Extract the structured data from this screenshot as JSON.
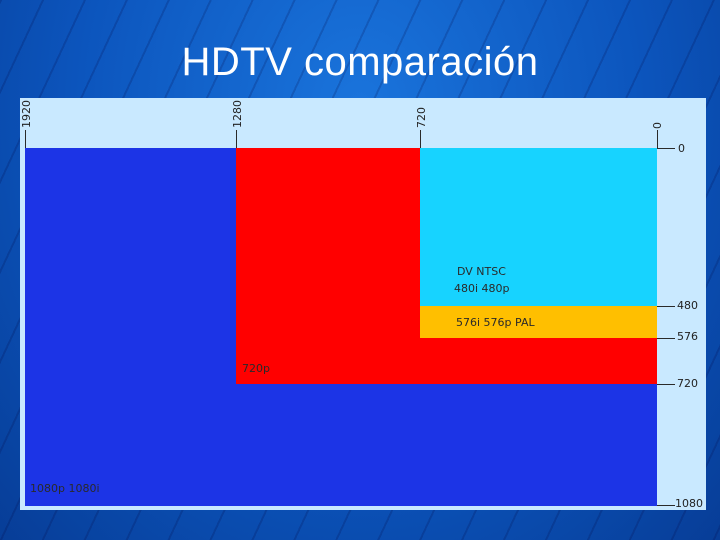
{
  "title": "HDTV comparación",
  "top_axis": {
    "ticks": [
      "1920",
      "1280",
      "720",
      "0"
    ]
  },
  "right_axis": {
    "ticks": [
      "0",
      "480",
      "576",
      "720",
      "1080"
    ]
  },
  "regions": {
    "full_hd": {
      "label": "1080p  1080i",
      "color": "#1c34e6"
    },
    "hd720": {
      "label": "720p",
      "color": "#ff0000"
    },
    "pal": {
      "label": "576i 576p   PAL",
      "color": "#ffbf00"
    },
    "ntsc": {
      "label_line1": "DV NTSC",
      "label_line2": "480i  480p",
      "color": "#17d3ff"
    }
  }
}
